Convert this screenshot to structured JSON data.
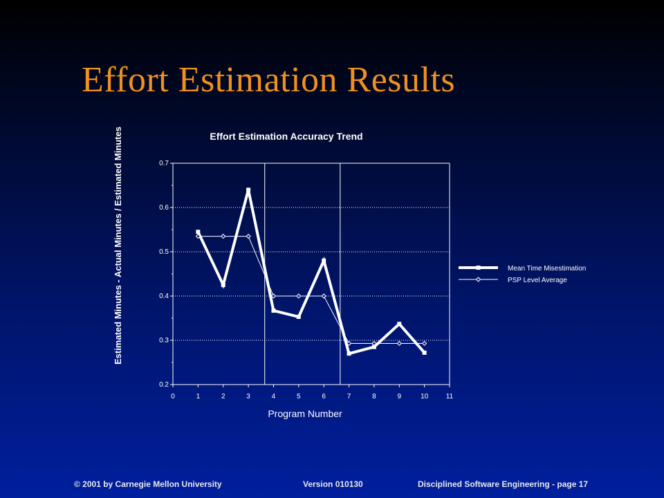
{
  "slide": {
    "title": "Effort Estimation Results",
    "footer_left": "© 2001 by Carnegie Mellon University",
    "footer_center": "Version 010130",
    "footer_right": "Disciplined Software Engineering - page 17"
  },
  "colors": {
    "title": "#f0901e",
    "text": "#ffffff",
    "grid": "#ffffff",
    "series_primary": "#ffffff",
    "series_secondary": "#ffffff"
  },
  "chart_data": {
    "type": "line",
    "title": "Effort Estimation Accuracy Trend",
    "xlabel": "Program Number",
    "ylabel": "Estimated Minutes - Actual Minutes / Estimated Minutes",
    "xlim": [
      0,
      11
    ],
    "ylim": [
      0.2,
      0.7
    ],
    "x_ticks": [
      "0",
      "1",
      "2",
      "3",
      "4",
      "5",
      "6",
      "7",
      "8",
      "9",
      "10",
      "11"
    ],
    "y_ticks": [
      "0.2",
      "0.3",
      "0.4",
      "0.5",
      "0.6",
      "0.7"
    ],
    "grid": true,
    "level_dividers_x": [
      3.65,
      6.65
    ],
    "legend_position": "right",
    "series": [
      {
        "name": "Mean Time Misestimation",
        "style": "thick",
        "x": [
          1,
          2,
          3,
          4,
          5,
          6,
          7,
          8,
          9,
          10
        ],
        "y": [
          0.545,
          0.425,
          0.64,
          0.367,
          0.353,
          0.48,
          0.27,
          0.285,
          0.337,
          0.272
        ]
      },
      {
        "name": "PSP Level Average",
        "style": "thin",
        "x": [
          1,
          2,
          3,
          4,
          5,
          6,
          7,
          8,
          9,
          10
        ],
        "y": [
          0.535,
          0.535,
          0.535,
          0.4,
          0.4,
          0.4,
          0.293,
          0.293,
          0.293,
          0.293
        ]
      }
    ]
  }
}
